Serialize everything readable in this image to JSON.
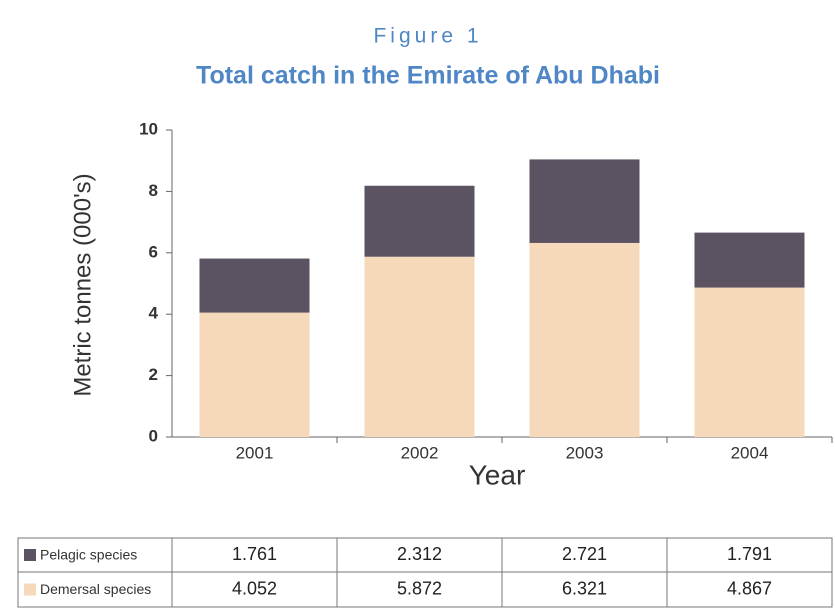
{
  "chart_data": {
    "type": "bar",
    "stacked": true,
    "figure_label": "Figure 1",
    "title": "Total catch in the Emirate of Abu Dhabi",
    "x_label": "Year",
    "y_label": "Metric tonnes (000's)",
    "categories": [
      "2001",
      "2002",
      "2003",
      "2004"
    ],
    "series": [
      {
        "name": "Demersal species",
        "color": "#f6d8ba",
        "values": [
          4.052,
          5.872,
          6.321,
          4.867
        ]
      },
      {
        "name": "Pelagic species",
        "color": "#5b5262",
        "values": [
          1.761,
          2.312,
          2.721,
          1.791
        ]
      }
    ],
    "table_order": [
      1,
      0
    ],
    "ylim": [
      0,
      10
    ],
    "yticks": [
      0,
      2,
      4,
      6,
      8,
      10
    ],
    "grid": false
  }
}
